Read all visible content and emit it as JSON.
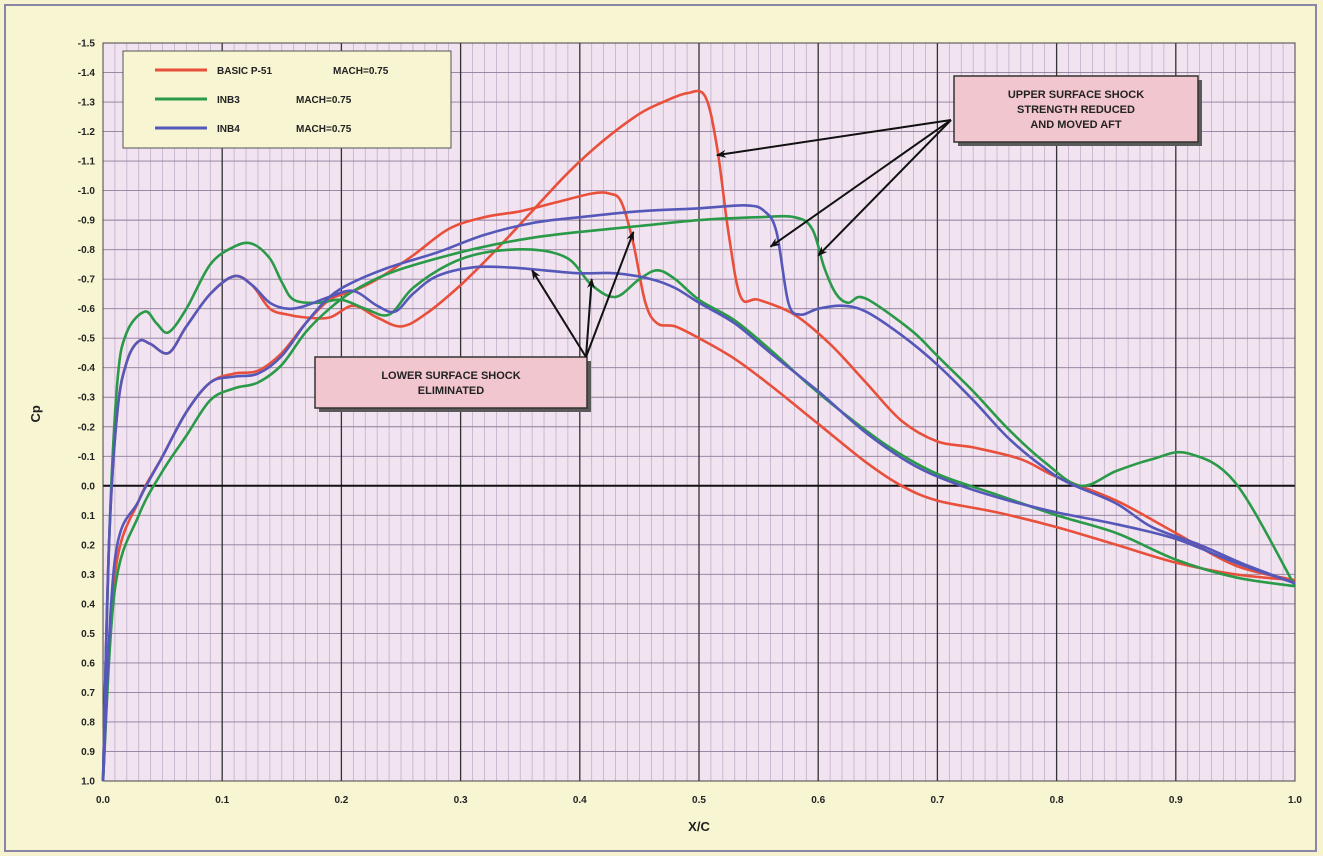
{
  "chart_data": {
    "type": "line",
    "xlabel": "X/C",
    "ylabel": "Cp",
    "xlim": [
      0,
      1
    ],
    "ylim": [
      -1.5,
      1.0
    ],
    "y_reversed": true,
    "grid": true,
    "legend_position": "top-left",
    "x_ticks": [
      "0.0",
      "0.1",
      "0.2",
      "0.3",
      "0.4",
      "0.5",
      "0.6",
      "0.7",
      "0.8",
      "0.9",
      "1.0"
    ],
    "y_ticks": [
      "-1.5",
      "-1.4",
      "-1.3",
      "-1.2",
      "-1.1",
      "-1.0",
      "-0.9",
      "-0.8",
      "-0.7",
      "-0.6",
      "-0.5",
      "-0.4",
      "-0.3",
      "-0.2",
      "-0.1",
      "0.0",
      "0.1",
      "0.2",
      "0.3",
      "0.4",
      "0.5",
      "0.6",
      "0.7",
      "0.8",
      "0.9",
      "1.0"
    ],
    "series": [
      {
        "name": "BASIC P-51",
        "mach": "MACH=0.75",
        "color": "#e8503c",
        "upper": [
          [
            0,
            1.0
          ],
          [
            0.005,
            0.2
          ],
          [
            0.012,
            -0.25
          ],
          [
            0.02,
            -0.42
          ],
          [
            0.03,
            -0.49
          ],
          [
            0.04,
            -0.48
          ],
          [
            0.055,
            -0.45
          ],
          [
            0.07,
            -0.54
          ],
          [
            0.09,
            -0.65
          ],
          [
            0.11,
            -0.71
          ],
          [
            0.125,
            -0.68
          ],
          [
            0.14,
            -0.6
          ],
          [
            0.155,
            -0.58
          ],
          [
            0.17,
            -0.57
          ],
          [
            0.19,
            -0.57
          ],
          [
            0.21,
            -0.61
          ],
          [
            0.23,
            -0.57
          ],
          [
            0.25,
            -0.54
          ],
          [
            0.27,
            -0.58
          ],
          [
            0.3,
            -0.68
          ],
          [
            0.33,
            -0.8
          ],
          [
            0.36,
            -0.93
          ],
          [
            0.39,
            -1.06
          ],
          [
            0.42,
            -1.17
          ],
          [
            0.45,
            -1.26
          ],
          [
            0.47,
            -1.3
          ],
          [
            0.49,
            -1.33
          ],
          [
            0.505,
            -1.32
          ],
          [
            0.515,
            -1.15
          ],
          [
            0.525,
            -0.85
          ],
          [
            0.535,
            -0.64
          ],
          [
            0.55,
            -0.63
          ],
          [
            0.58,
            -0.58
          ],
          [
            0.61,
            -0.48
          ],
          [
            0.64,
            -0.35
          ],
          [
            0.67,
            -0.22
          ],
          [
            0.7,
            -0.15
          ],
          [
            0.73,
            -0.13
          ],
          [
            0.77,
            -0.09
          ],
          [
            0.8,
            -0.03
          ],
          [
            0.85,
            0.05
          ],
          [
            0.9,
            0.16
          ],
          [
            0.95,
            0.27
          ],
          [
            1.0,
            0.32
          ]
        ],
        "lower": [
          [
            0,
            1.0
          ],
          [
            0.01,
            0.3
          ],
          [
            0.03,
            0.05
          ],
          [
            0.05,
            -0.1
          ],
          [
            0.07,
            -0.25
          ],
          [
            0.09,
            -0.35
          ],
          [
            0.11,
            -0.38
          ],
          [
            0.13,
            -0.39
          ],
          [
            0.15,
            -0.45
          ],
          [
            0.17,
            -0.55
          ],
          [
            0.19,
            -0.63
          ],
          [
            0.21,
            -0.66
          ],
          [
            0.23,
            -0.7
          ],
          [
            0.26,
            -0.78
          ],
          [
            0.29,
            -0.87
          ],
          [
            0.32,
            -0.91
          ],
          [
            0.35,
            -0.93
          ],
          [
            0.38,
            -0.96
          ],
          [
            0.41,
            -0.99
          ],
          [
            0.425,
            -0.99
          ],
          [
            0.435,
            -0.96
          ],
          [
            0.445,
            -0.82
          ],
          [
            0.455,
            -0.62
          ],
          [
            0.465,
            -0.55
          ],
          [
            0.48,
            -0.54
          ],
          [
            0.5,
            -0.5
          ],
          [
            0.53,
            -0.43
          ],
          [
            0.56,
            -0.34
          ],
          [
            0.6,
            -0.21
          ],
          [
            0.64,
            -0.08
          ],
          [
            0.67,
            0.0
          ],
          [
            0.7,
            0.05
          ],
          [
            0.75,
            0.09
          ],
          [
            0.8,
            0.14
          ],
          [
            0.85,
            0.2
          ],
          [
            0.9,
            0.26
          ],
          [
            0.95,
            0.3
          ],
          [
            1.0,
            0.32
          ]
        ]
      },
      {
        "name": "INB3",
        "mach": "MACH=0.75",
        "color": "#2a9a48",
        "upper": [
          [
            0,
            1.0
          ],
          [
            0.005,
            0.2
          ],
          [
            0.012,
            -0.35
          ],
          [
            0.02,
            -0.52
          ],
          [
            0.035,
            -0.59
          ],
          [
            0.045,
            -0.55
          ],
          [
            0.055,
            -0.52
          ],
          [
            0.07,
            -0.6
          ],
          [
            0.09,
            -0.75
          ],
          [
            0.11,
            -0.81
          ],
          [
            0.125,
            -0.82
          ],
          [
            0.14,
            -0.77
          ],
          [
            0.15,
            -0.69
          ],
          [
            0.16,
            -0.63
          ],
          [
            0.18,
            -0.62
          ],
          [
            0.2,
            -0.63
          ],
          [
            0.22,
            -0.6
          ],
          [
            0.24,
            -0.58
          ],
          [
            0.26,
            -0.67
          ],
          [
            0.29,
            -0.75
          ],
          [
            0.32,
            -0.79
          ],
          [
            0.36,
            -0.8
          ],
          [
            0.39,
            -0.77
          ],
          [
            0.41,
            -0.68
          ],
          [
            0.43,
            -0.64
          ],
          [
            0.45,
            -0.7
          ],
          [
            0.465,
            -0.73
          ],
          [
            0.48,
            -0.7
          ],
          [
            0.5,
            -0.63
          ],
          [
            0.53,
            -0.56
          ],
          [
            0.56,
            -0.46
          ],
          [
            0.59,
            -0.35
          ],
          [
            0.62,
            -0.25
          ],
          [
            0.66,
            -0.13
          ],
          [
            0.7,
            -0.04
          ],
          [
            0.75,
            0.03
          ],
          [
            0.8,
            0.1
          ],
          [
            0.85,
            0.16
          ],
          [
            0.9,
            0.25
          ],
          [
            0.95,
            0.31
          ],
          [
            1.0,
            0.34
          ]
        ],
        "lower": [
          [
            0,
            1.0
          ],
          [
            0.01,
            0.35
          ],
          [
            0.03,
            0.1
          ],
          [
            0.05,
            -0.05
          ],
          [
            0.07,
            -0.17
          ],
          [
            0.09,
            -0.29
          ],
          [
            0.11,
            -0.33
          ],
          [
            0.13,
            -0.35
          ],
          [
            0.15,
            -0.41
          ],
          [
            0.17,
            -0.52
          ],
          [
            0.19,
            -0.6
          ],
          [
            0.21,
            -0.66
          ],
          [
            0.24,
            -0.72
          ],
          [
            0.28,
            -0.77
          ],
          [
            0.32,
            -0.81
          ],
          [
            0.36,
            -0.84
          ],
          [
            0.4,
            -0.86
          ],
          [
            0.45,
            -0.88
          ],
          [
            0.5,
            -0.9
          ],
          [
            0.55,
            -0.91
          ],
          [
            0.58,
            -0.91
          ],
          [
            0.595,
            -0.87
          ],
          [
            0.605,
            -0.74
          ],
          [
            0.615,
            -0.65
          ],
          [
            0.625,
            -0.62
          ],
          [
            0.635,
            -0.64
          ],
          [
            0.65,
            -0.61
          ],
          [
            0.68,
            -0.52
          ],
          [
            0.7,
            -0.44
          ],
          [
            0.73,
            -0.32
          ],
          [
            0.76,
            -0.19
          ],
          [
            0.79,
            -0.08
          ],
          [
            0.82,
            0.0
          ],
          [
            0.85,
            -0.05
          ],
          [
            0.88,
            -0.09
          ],
          [
            0.91,
            -0.11
          ],
          [
            0.95,
            -0.01
          ],
          [
            1.0,
            0.34
          ]
        ]
      },
      {
        "name": "INB4",
        "mach": "MACH=0.75",
        "color": "#5558b8",
        "upper": [
          [
            0,
            1.0
          ],
          [
            0.005,
            0.2
          ],
          [
            0.012,
            -0.25
          ],
          [
            0.02,
            -0.42
          ],
          [
            0.03,
            -0.49
          ],
          [
            0.04,
            -0.48
          ],
          [
            0.055,
            -0.45
          ],
          [
            0.07,
            -0.54
          ],
          [
            0.09,
            -0.65
          ],
          [
            0.11,
            -0.71
          ],
          [
            0.125,
            -0.68
          ],
          [
            0.14,
            -0.62
          ],
          [
            0.155,
            -0.6
          ],
          [
            0.17,
            -0.61
          ],
          [
            0.19,
            -0.64
          ],
          [
            0.21,
            -0.66
          ],
          [
            0.23,
            -0.61
          ],
          [
            0.245,
            -0.59
          ],
          [
            0.26,
            -0.65
          ],
          [
            0.28,
            -0.71
          ],
          [
            0.31,
            -0.74
          ],
          [
            0.34,
            -0.74
          ],
          [
            0.37,
            -0.73
          ],
          [
            0.4,
            -0.72
          ],
          [
            0.43,
            -0.72
          ],
          [
            0.46,
            -0.7
          ],
          [
            0.48,
            -0.67
          ],
          [
            0.5,
            -0.62
          ],
          [
            0.53,
            -0.55
          ],
          [
            0.56,
            -0.45
          ],
          [
            0.6,
            -0.32
          ],
          [
            0.64,
            -0.18
          ],
          [
            0.68,
            -0.07
          ],
          [
            0.72,
            0.0
          ],
          [
            0.76,
            0.05
          ],
          [
            0.8,
            0.09
          ],
          [
            0.85,
            0.13
          ],
          [
            0.9,
            0.18
          ],
          [
            0.95,
            0.26
          ],
          [
            1.0,
            0.33
          ]
        ],
        "lower": [
          [
            0,
            1.0
          ],
          [
            0.01,
            0.25
          ],
          [
            0.03,
            0.05
          ],
          [
            0.05,
            -0.1
          ],
          [
            0.07,
            -0.25
          ],
          [
            0.09,
            -0.35
          ],
          [
            0.11,
            -0.37
          ],
          [
            0.13,
            -0.38
          ],
          [
            0.15,
            -0.44
          ],
          [
            0.17,
            -0.55
          ],
          [
            0.19,
            -0.64
          ],
          [
            0.21,
            -0.69
          ],
          [
            0.24,
            -0.74
          ],
          [
            0.28,
            -0.79
          ],
          [
            0.32,
            -0.85
          ],
          [
            0.36,
            -0.89
          ],
          [
            0.4,
            -0.91
          ],
          [
            0.45,
            -0.93
          ],
          [
            0.5,
            -0.94
          ],
          [
            0.54,
            -0.95
          ],
          [
            0.555,
            -0.93
          ],
          [
            0.565,
            -0.86
          ],
          [
            0.575,
            -0.62
          ],
          [
            0.585,
            -0.58
          ],
          [
            0.6,
            -0.6
          ],
          [
            0.62,
            -0.61
          ],
          [
            0.64,
            -0.59
          ],
          [
            0.67,
            -0.51
          ],
          [
            0.7,
            -0.41
          ],
          [
            0.73,
            -0.29
          ],
          [
            0.76,
            -0.16
          ],
          [
            0.79,
            -0.06
          ],
          [
            0.81,
            -0.01
          ],
          [
            0.85,
            0.06
          ],
          [
            0.88,
            0.14
          ],
          [
            0.92,
            0.2
          ],
          [
            0.96,
            0.27
          ],
          [
            1.0,
            0.33
          ]
        ]
      }
    ],
    "annotations": [
      {
        "lines": [
          "UPPER SURFACE SHOCK",
          "STRENGTH REDUCED",
          "AND MOVED AFT"
        ],
        "arrow_targets": [
          [
            0.515,
            -1.12
          ],
          [
            0.56,
            -0.81
          ],
          [
            0.6,
            -0.78
          ]
        ]
      },
      {
        "lines": [
          "LOWER SURFACE SHOCK",
          "ELIMINATED"
        ],
        "arrow_targets": [
          [
            0.36,
            -0.73
          ],
          [
            0.41,
            -0.7
          ],
          [
            0.445,
            -0.86
          ]
        ]
      }
    ]
  }
}
